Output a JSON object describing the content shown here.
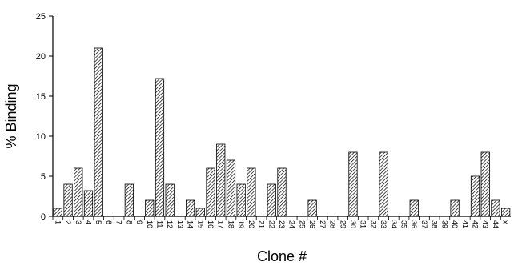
{
  "chart_data": {
    "type": "bar",
    "title": "",
    "xlabel": "Clone #",
    "ylabel": "% Binding",
    "ylim": [
      0,
      25
    ],
    "yticks": [
      0,
      5,
      10,
      15,
      20,
      25
    ],
    "grid": false,
    "legend": "none",
    "bar_fill": "diagonal-hatch",
    "colors": {
      "bar_stroke": "#000000",
      "hatch": "#000000",
      "background": "#ffffff"
    },
    "categories": [
      "1",
      "2",
      "3",
      "4",
      "5",
      "6",
      "7",
      "8",
      "9",
      "10",
      "11",
      "12",
      "13",
      "14",
      "15",
      "16",
      "17",
      "18",
      "19",
      "20",
      "21",
      "22",
      "23",
      "24",
      "25",
      "26",
      "27",
      "28",
      "29",
      "30",
      "31",
      "32",
      "33",
      "34",
      "35",
      "36",
      "37",
      "38",
      "39",
      "40",
      "41",
      "42",
      "43",
      "44",
      "x"
    ],
    "values": [
      1,
      4,
      6,
      3.2,
      21,
      0,
      0,
      4,
      0,
      2,
      17.2,
      4,
      0,
      2,
      1,
      6,
      9,
      7,
      4,
      6,
      0,
      4,
      6,
      0,
      0,
      2,
      0,
      0,
      0,
      8,
      0,
      0,
      8,
      0,
      0,
      2,
      0,
      0,
      0,
      2,
      0,
      5,
      8,
      2,
      1
    ]
  }
}
